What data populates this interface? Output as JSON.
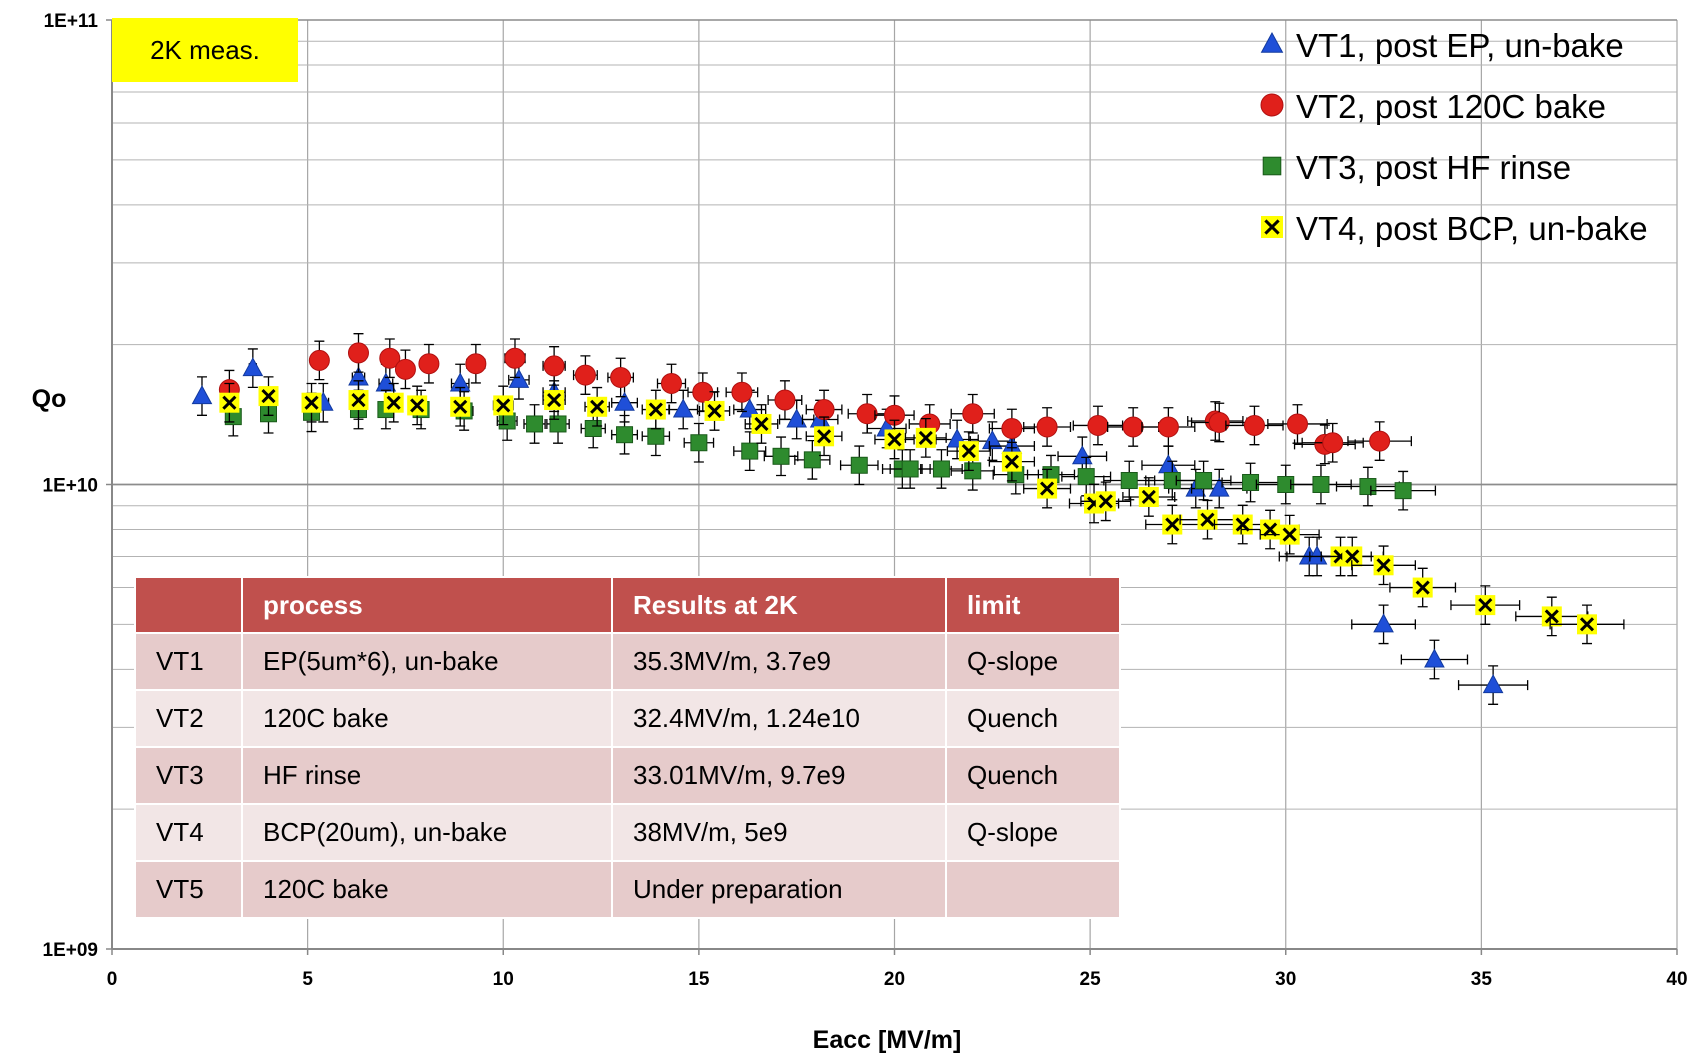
{
  "note": "2K meas.",
  "legend": [
    {
      "label": "VT1, post EP, un-bake",
      "marker": "triangle",
      "color": "#1f4fd8"
    },
    {
      "label": "VT2, post 120C bake",
      "marker": "circle",
      "color": "#e0201b"
    },
    {
      "label": "VT3, post HF rinse",
      "marker": "square",
      "color": "#2e8b2e"
    },
    {
      "label": "VT4, post BCP, un-bake",
      "marker": "cross",
      "color": "#ffff00"
    }
  ],
  "table": {
    "headers": [
      "",
      "process",
      "Results at 2K",
      "limit"
    ],
    "rows": [
      [
        "VT1",
        "EP(5um*6), un-bake",
        "35.3MV/m, 3.7e9",
        "Q-slope"
      ],
      [
        "VT2",
        "120C bake",
        "32.4MV/m, 1.24e10",
        "Quench"
      ],
      [
        "VT3",
        "HF rinse",
        "33.01MV/m, 9.7e9",
        "Quench"
      ],
      [
        "VT4",
        "BCP(20um), un-bake",
        "38MV/m, 5e9",
        "Q-slope"
      ],
      [
        "VT5",
        "120C bake",
        "Under preparation",
        ""
      ]
    ]
  },
  "chart_data": {
    "type": "scatter",
    "title": "",
    "xlabel": "Eacc [MV/m]",
    "ylabel": "Qo",
    "xlim": [
      0,
      40
    ],
    "ylim": [
      1000000000.0,
      100000000000.0
    ],
    "yscale": "log",
    "grid": true,
    "legend_position": "top-right",
    "xticks": [
      "0",
      "5",
      "10",
      "15",
      "20",
      "25",
      "30",
      "35",
      "40"
    ],
    "yticks": [
      "1E+09",
      "1E+10",
      "1E+11"
    ],
    "x_error_bars": true,
    "y_error_bars": true,
    "series": [
      {
        "name": "VT1, post EP, un-bake",
        "marker": "triangle",
        "color": "#1f4fd8",
        "points": [
          [
            2.3,
            15500000000.0
          ],
          [
            3.6,
            17800000000.0
          ],
          [
            5.4,
            15000000000.0
          ],
          [
            6.3,
            17000000000.0
          ],
          [
            7.0,
            16500000000.0
          ],
          [
            8.9,
            16500000000.0
          ],
          [
            10.4,
            16800000000.0
          ],
          [
            11.3,
            15800000000.0
          ],
          [
            13.1,
            15000000000.0
          ],
          [
            14.6,
            14500000000.0
          ],
          [
            16.3,
            14500000000.0
          ],
          [
            17.5,
            13800000000.0
          ],
          [
            18.1,
            13800000000.0
          ],
          [
            19.8,
            13200000000.0
          ],
          [
            21.6,
            12500000000.0
          ],
          [
            22.5,
            12400000000.0
          ],
          [
            23.0,
            12100000000.0
          ],
          [
            24.8,
            11500000000.0
          ],
          [
            27.0,
            11000000000.0
          ],
          [
            27.7,
            9800000000.0
          ],
          [
            28.3,
            9800000000.0
          ],
          [
            30.6,
            7000000000.0
          ],
          [
            30.8,
            7000000000.0
          ],
          [
            32.5,
            5000000000.0
          ],
          [
            33.8,
            4200000000.0
          ],
          [
            35.3,
            3700000000.0
          ]
        ]
      },
      {
        "name": "VT2, post 120C bake",
        "marker": "circle",
        "color": "#e0201b",
        "points": [
          [
            3.0,
            16000000000.0
          ],
          [
            5.3,
            18500000000.0
          ],
          [
            6.3,
            19200000000.0
          ],
          [
            7.1,
            18700000000.0
          ],
          [
            7.5,
            17700000000.0
          ],
          [
            8.1,
            18200000000.0
          ],
          [
            9.3,
            18200000000.0
          ],
          [
            10.3,
            18700000000.0
          ],
          [
            11.3,
            18000000000.0
          ],
          [
            12.1,
            17200000000.0
          ],
          [
            13.0,
            17000000000.0
          ],
          [
            14.3,
            16500000000.0
          ],
          [
            15.1,
            15800000000.0
          ],
          [
            16.1,
            15800000000.0
          ],
          [
            17.2,
            15200000000.0
          ],
          [
            18.2,
            14500000000.0
          ],
          [
            19.3,
            14200000000.0
          ],
          [
            20.0,
            14100000000.0
          ],
          [
            20.9,
            13500000000.0
          ],
          [
            22.0,
            14200000000.0
          ],
          [
            23.0,
            13200000000.0
          ],
          [
            23.9,
            13300000000.0
          ],
          [
            25.2,
            13400000000.0
          ],
          [
            26.1,
            13300000000.0
          ],
          [
            27.0,
            13300000000.0
          ],
          [
            28.2,
            13700000000.0
          ],
          [
            28.3,
            13600000000.0
          ],
          [
            29.2,
            13400000000.0
          ],
          [
            30.3,
            13500000000.0
          ],
          [
            31.0,
            12200000000.0
          ],
          [
            31.2,
            12300000000.0
          ],
          [
            32.4,
            12400000000.0
          ]
        ]
      },
      {
        "name": "VT3, post HF rinse",
        "marker": "square",
        "color": "#2e8b2e",
        "points": [
          [
            3.1,
            14000000000.0
          ],
          [
            4.0,
            14200000000.0
          ],
          [
            5.1,
            14300000000.0
          ],
          [
            6.3,
            14500000000.0
          ],
          [
            7.0,
            14500000000.0
          ],
          [
            7.9,
            14500000000.0
          ],
          [
            9.0,
            14400000000.0
          ],
          [
            10.1,
            13700000000.0
          ],
          [
            10.8,
            13500000000.0
          ],
          [
            11.4,
            13500000000.0
          ],
          [
            12.3,
            13200000000.0
          ],
          [
            13.1,
            12800000000.0
          ],
          [
            13.9,
            12700000000.0
          ],
          [
            15.0,
            12300000000.0
          ],
          [
            16.3,
            11800000000.0
          ],
          [
            17.1,
            11500000000.0
          ],
          [
            17.9,
            11300000000.0
          ],
          [
            19.1,
            11000000000.0
          ],
          [
            20.2,
            10800000000.0
          ],
          [
            20.4,
            10800000000.0
          ],
          [
            21.2,
            10800000000.0
          ],
          [
            22.0,
            10700000000.0
          ],
          [
            23.1,
            10500000000.0
          ],
          [
            24.0,
            10500000000.0
          ],
          [
            24.9,
            10400000000.0
          ],
          [
            26.0,
            10200000000.0
          ],
          [
            27.1,
            10200000000.0
          ],
          [
            27.9,
            10200000000.0
          ],
          [
            29.1,
            10100000000.0
          ],
          [
            30.0,
            10000000000.0
          ],
          [
            30.9,
            10000000000.0
          ],
          [
            32.1,
            9900000000.0
          ],
          [
            33.0,
            9700000000.0
          ]
        ]
      },
      {
        "name": "VT4, post BCP, un-bake",
        "marker": "cross",
        "color": "#ffff00",
        "points": [
          [
            3.0,
            15000000000.0
          ],
          [
            4.0,
            15500000000.0
          ],
          [
            5.1,
            15000000000.0
          ],
          [
            6.3,
            15200000000.0
          ],
          [
            7.2,
            15000000000.0
          ],
          [
            7.8,
            14800000000.0
          ],
          [
            8.9,
            14700000000.0
          ],
          [
            10.0,
            14800000000.0
          ],
          [
            11.3,
            15200000000.0
          ],
          [
            12.4,
            14700000000.0
          ],
          [
            13.9,
            14500000000.0
          ],
          [
            15.4,
            14400000000.0
          ],
          [
            16.6,
            13500000000.0
          ],
          [
            18.2,
            12700000000.0
          ],
          [
            20.0,
            12500000000.0
          ],
          [
            20.8,
            12600000000.0
          ],
          [
            21.9,
            11800000000.0
          ],
          [
            23.0,
            11200000000.0
          ],
          [
            23.9,
            9800000000.0
          ],
          [
            25.1,
            9100000000.0
          ],
          [
            25.4,
            9200000000.0
          ],
          [
            26.5,
            9400000000.0
          ],
          [
            27.1,
            8200000000.0
          ],
          [
            28.0,
            8400000000.0
          ],
          [
            28.9,
            8200000000.0
          ],
          [
            29.6,
            8000000000.0
          ],
          [
            30.1,
            7800000000.0
          ],
          [
            31.4,
            7000000000.0
          ],
          [
            31.7,
            7000000000.0
          ],
          [
            32.5,
            6700000000.0
          ],
          [
            33.5,
            6000000000.0
          ],
          [
            35.1,
            5500000000.0
          ],
          [
            36.8,
            5200000000.0
          ],
          [
            37.7,
            5000000000.0
          ]
        ]
      }
    ]
  }
}
